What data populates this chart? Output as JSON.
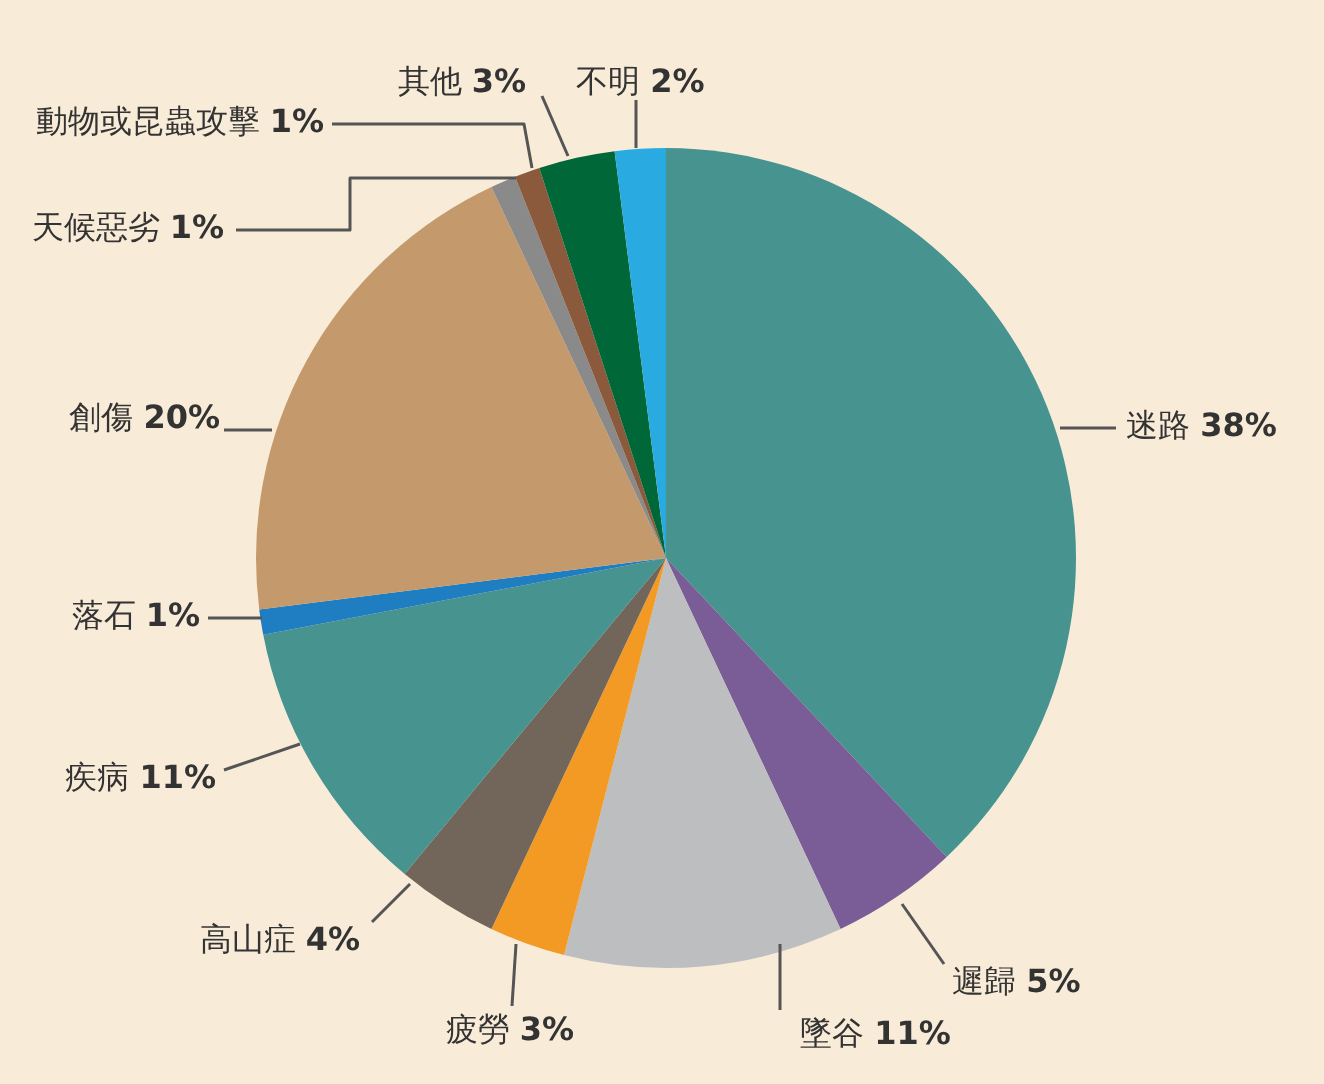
{
  "chart_data": {
    "type": "pie",
    "categories": [
      "迷路",
      "遲歸",
      "墜谷",
      "疲勞",
      "高山症",
      "疾病",
      "落石",
      "創傷",
      "天候惡劣",
      "動物或昆蟲攻擊",
      "其他",
      "不明"
    ],
    "values": [
      38,
      5,
      11,
      3,
      4,
      11,
      1,
      20,
      1,
      1,
      3,
      2
    ],
    "value_labels": [
      "38%",
      "5%",
      "11%",
      "3%",
      "4%",
      "11%",
      "1%",
      "20%",
      "1%",
      "1%",
      "3%",
      "2%"
    ],
    "colors": [
      "#47938f",
      "#7a5c96",
      "#bdbec0",
      "#f39a25",
      "#72665a",
      "#47938f",
      "#1f7dc1",
      "#c49a6c",
      "#8a8a8a",
      "#8b5a3c",
      "#006838",
      "#29abe2"
    ],
    "legend": false
  }
}
